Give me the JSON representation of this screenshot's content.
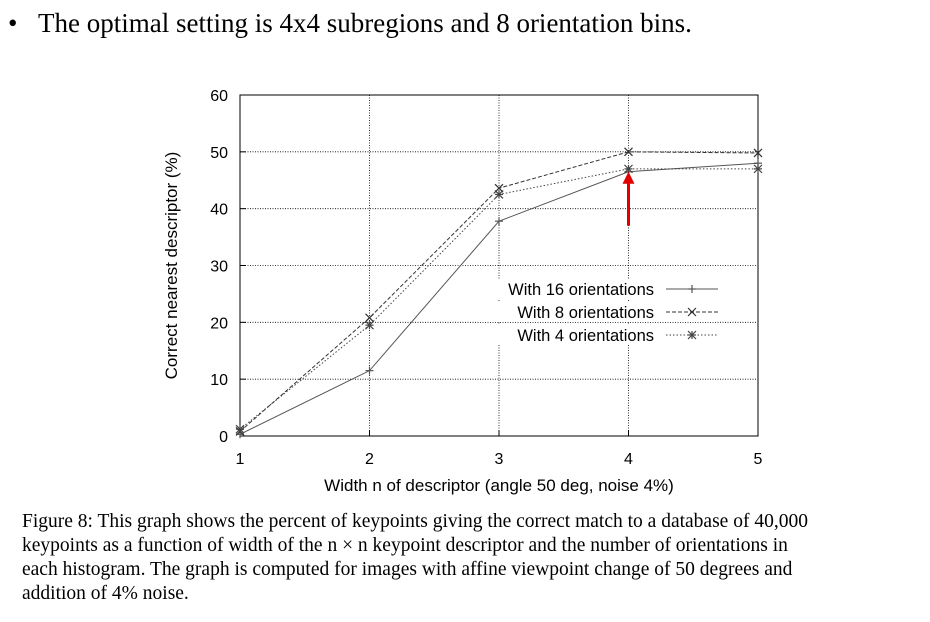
{
  "slide": {
    "bullet": "•",
    "text": "The optimal setting is 4x4 subregions and 8 orientation bins."
  },
  "caption": {
    "lines": [
      "Figure 8: This graph shows the percent of keypoints giving the correct match to a database of 40,000",
      "keypoints as a function of width of the n × n keypoint descriptor and the number of orientations in",
      "each histogram.  The graph is computed for images with affine viewpoint change of 50 degrees and",
      "addition of 4% noise."
    ]
  },
  "chart_data": {
    "type": "line",
    "xlabel": "Width n of descriptor (angle 50 deg, noise 4%)",
    "ylabel": "Correct nearest descriptor (%)",
    "x": [
      1,
      2,
      3,
      4,
      5
    ],
    "xlim": [
      1,
      5
    ],
    "ylim": [
      0,
      60
    ],
    "xticks": [
      "1",
      "2",
      "3",
      "4",
      "5"
    ],
    "yticks": [
      "0",
      "10",
      "20",
      "30",
      "40",
      "50",
      "60"
    ],
    "grid": true,
    "legend_position": "center-right",
    "series": [
      {
        "name": "With 16 orientations",
        "values": [
          0.3,
          11.5,
          37.8,
          46.5,
          48.0
        ],
        "marker": "+",
        "dash": "solid",
        "color": "#555555"
      },
      {
        "name": "With 8 orientations",
        "values": [
          0.8,
          20.8,
          43.6,
          50.0,
          49.8
        ],
        "marker": "x",
        "dash": "dashed",
        "color": "#333333"
      },
      {
        "name": "With 4 orientations",
        "values": [
          1.2,
          19.5,
          42.5,
          47.0,
          47.0
        ],
        "marker": "*",
        "dash": "dotted",
        "color": "#444444"
      }
    ],
    "annotation": {
      "type": "arrow",
      "x": 4,
      "y_from": 37,
      "y_to": 46.5,
      "color": "#e00000"
    }
  }
}
